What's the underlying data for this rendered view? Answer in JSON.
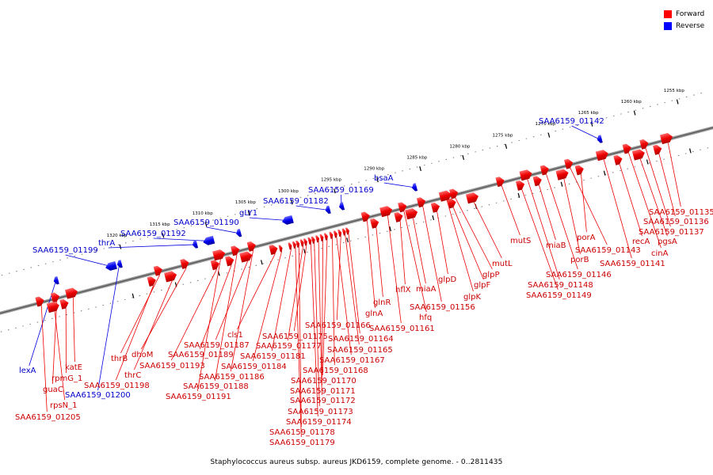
{
  "legend": {
    "forward_label": "Forward",
    "reverse_label": "Reverse",
    "forward_color": "#ff0000",
    "reverse_color": "#0000ff"
  },
  "caption": "Staphylococcus aureus subsp. aureus JKD6159, complete genome. - 0..2811435",
  "colors": {
    "forward": "#dd0000",
    "reverse": "#0000cc",
    "backbone": "#888888",
    "line": "#ee0000",
    "line_blue": "#0000dd"
  },
  "scale_ticks": [
    {
      "label": "1255 kbp",
      "kbp": 1255
    },
    {
      "label": "1260 kbp",
      "kbp": 1260
    },
    {
      "label": "1265 kbp",
      "kbp": 1265
    },
    {
      "label": "1270 kbp",
      "kbp": 1270
    },
    {
      "label": "1275 kbp",
      "kbp": 1275
    },
    {
      "label": "1280 kbp",
      "kbp": 1280
    },
    {
      "label": "1285 kbp",
      "kbp": 1285
    },
    {
      "label": "1290 kbp",
      "kbp": 1290
    },
    {
      "label": "1295 kbp",
      "kbp": 1295
    },
    {
      "label": "1300 kbp",
      "kbp": 1300
    },
    {
      "label": "1305 kbp",
      "kbp": 1305
    },
    {
      "label": "1310 kbp",
      "kbp": 1310
    },
    {
      "label": "1315 kbp",
      "kbp": 1315
    },
    {
      "label": "1320 kbp",
      "kbp": 1320
    }
  ],
  "reverse_genes": [
    {
      "label": "SAA6159_01142",
      "kbp": 1264.6
    },
    {
      "label": "bsaA",
      "kbp": 1286.2
    },
    {
      "label": "SAA6159_01169",
      "kbp": 1294.7
    },
    {
      "label": "SAA6159_01182",
      "kbp": 1296.3
    },
    {
      "label": "gLY1",
      "kbp": 1301.0
    },
    {
      "label": "SAA6159_01190",
      "kbp": 1306.7
    },
    {
      "label": "SAA6159_01192",
      "kbp": 1310.2
    },
    {
      "label": "thrA",
      "kbp": 1311.8
    },
    {
      "label": "SAA6159_01199",
      "kbp": 1321.6
    },
    {
      "label": "lexA",
      "kbp": 1328.0
    },
    {
      "label": "SAA6159_01200",
      "kbp": 1320.6
    }
  ],
  "forward_genes": [
    {
      "label": "SAA6159_01135",
      "kbp": 1257.2
    },
    {
      "label": "SAA6159_01136",
      "kbp": 1258.5
    },
    {
      "label": "SAA6159_01137",
      "kbp": 1259.8
    },
    {
      "label": "pgsA",
      "kbp": 1260.7
    },
    {
      "label": "cinA",
      "kbp": 1261.8
    },
    {
      "label": "recA",
      "kbp": 1263.1
    },
    {
      "label": "SAA6159_01141",
      "kbp": 1264.7
    },
    {
      "label": "porA",
      "kbp": 1267.6
    },
    {
      "label": "SAA6159_01143",
      "kbp": 1268.6
    },
    {
      "label": "porB",
      "kbp": 1269.6
    },
    {
      "label": "SAA6159_01146",
      "kbp": 1271.4
    },
    {
      "label": "miaB",
      "kbp": 1272.5
    },
    {
      "label": "SAA6159_01148",
      "kbp": 1273.6
    },
    {
      "label": "SAA6159_01149",
      "kbp": 1274.5
    },
    {
      "label": "mutS",
      "kbp": 1276.6
    },
    {
      "label": "mutL",
      "kbp": 1280.1
    },
    {
      "label": "glpP",
      "kbp": 1282.0
    },
    {
      "label": "glpF",
      "kbp": 1282.5
    },
    {
      "label": "glpK",
      "kbp": 1283.0
    },
    {
      "label": "glpD",
      "kbp": 1284.4
    },
    {
      "label": "SAA6159_01156",
      "kbp": 1285.8
    },
    {
      "label": "miaA",
      "kbp": 1287.2
    },
    {
      "label": "hfq",
      "kbp": 1288.0
    },
    {
      "label": "hflX",
      "kbp": 1288.7
    },
    {
      "label": "SAA6159_01161",
      "kbp": 1289.9
    },
    {
      "label": "glnR",
      "kbp": 1291.5
    },
    {
      "label": "glnA",
      "kbp": 1292.3
    },
    {
      "label": "SAA6159_01164",
      "kbp": 1294.7
    },
    {
      "label": "SAA6159_01165",
      "kbp": 1295.1
    },
    {
      "label": "SAA6159_01166",
      "kbp": 1295.6
    },
    {
      "label": "SAA6159_01167",
      "kbp": 1296.1
    },
    {
      "label": "SAA6159_01168",
      "kbp": 1296.6
    },
    {
      "label": "SAA6159_01170",
      "kbp": 1297.2
    },
    {
      "label": "SAA6159_01171",
      "kbp": 1297.7
    },
    {
      "label": "SAA6159_01172",
      "kbp": 1298.2
    },
    {
      "label": "SAA6159_01173",
      "kbp": 1298.7
    },
    {
      "label": "SAA6159_01174",
      "kbp": 1299.1
    },
    {
      "label": "SAA6159_01175",
      "kbp": 1299.6
    },
    {
      "label": "SAA6159_01177",
      "kbp": 1300.0
    },
    {
      "label": "SAA6159_01178",
      "kbp": 1300.5
    },
    {
      "label": "SAA6159_01179",
      "kbp": 1300.9
    },
    {
      "label": "SAA6159_01181",
      "kbp": 1301.4
    },
    {
      "label": "SAA6159_01184",
      "kbp": 1302.5
    },
    {
      "label": "cls1",
      "kbp": 1303.3
    },
    {
      "label": "SAA6159_01186",
      "kbp": 1305.6
    },
    {
      "label": "SAA6159_01187",
      "kbp": 1306.5
    },
    {
      "label": "SAA6159_01188",
      "kbp": 1307.5
    },
    {
      "label": "SAA6159_01189",
      "kbp": 1308.4
    },
    {
      "label": "SAA6159_01191",
      "kbp": 1309.4
    },
    {
      "label": "SAA6159_01193",
      "kbp": 1310.1
    },
    {
      "label": "dhoM",
      "kbp": 1313.4
    },
    {
      "label": "thrC",
      "kbp": 1315.3
    },
    {
      "label": "thrB",
      "kbp": 1316.5
    },
    {
      "label": "SAA6159_01198",
      "kbp": 1317.5
    },
    {
      "label": "katE",
      "kbp": 1326.6
    },
    {
      "label": "rpmG_1",
      "kbp": 1327.7
    },
    {
      "label": "guaC",
      "kbp": 1328.5
    },
    {
      "label": "rpsN_1",
      "kbp": 1329.0
    },
    {
      "label": "SAA6159_01205",
      "kbp": 1330.3
    }
  ]
}
